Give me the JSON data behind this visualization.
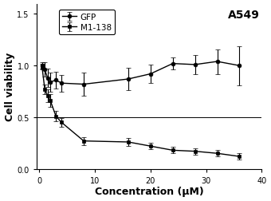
{
  "title": "A549",
  "xlabel": "Concentration (μM)",
  "ylabel": "Cell viability",
  "xlim": [
    -0.5,
    38
  ],
  "ylim": [
    0,
    1.6
  ],
  "yticks": [
    0.0,
    0.5,
    1.0,
    1.5
  ],
  "xticks": [
    0,
    10,
    20,
    30,
    40
  ],
  "hline_y": 0.5,
  "gfp_x": [
    0.5,
    1.0,
    1.5,
    2.0,
    3.0,
    4.0,
    8.0,
    16.0,
    20.0,
    24.0,
    28.0,
    32.0,
    36.0
  ],
  "gfp_y": [
    1.0,
    0.96,
    0.88,
    0.84,
    0.86,
    0.83,
    0.82,
    0.87,
    0.92,
    1.02,
    1.01,
    1.04,
    1.0
  ],
  "gfp_err": [
    0.03,
    0.07,
    0.09,
    0.09,
    0.08,
    0.08,
    0.11,
    0.11,
    0.09,
    0.06,
    0.09,
    0.12,
    0.19
  ],
  "m1_x": [
    0.5,
    1.0,
    1.5,
    2.0,
    3.0,
    4.0,
    8.0,
    16.0,
    20.0,
    24.0,
    28.0,
    32.0,
    36.0
  ],
  "m1_y": [
    0.99,
    0.77,
    0.71,
    0.66,
    0.51,
    0.45,
    0.27,
    0.26,
    0.22,
    0.18,
    0.17,
    0.15,
    0.12
  ],
  "m1_err": [
    0.03,
    0.05,
    0.06,
    0.06,
    0.05,
    0.04,
    0.04,
    0.04,
    0.03,
    0.03,
    0.03,
    0.03,
    0.03
  ],
  "line_color": "#000000",
  "bg_color": "#ffffff"
}
